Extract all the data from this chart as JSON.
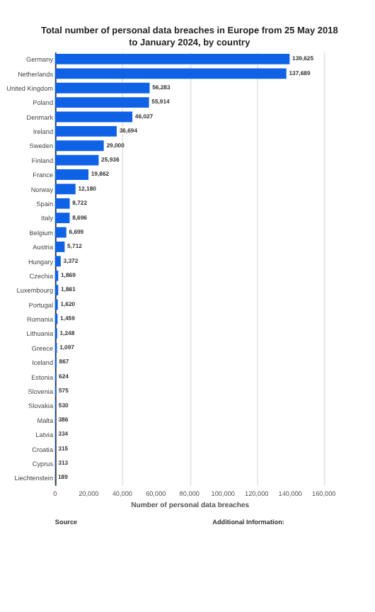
{
  "chart_data": {
    "type": "bar",
    "orientation": "horizontal",
    "title": "Total number of personal data breaches in Europe from 25 May 2018 to January 2024, by country",
    "xlabel": "Number of personal data breaches",
    "categories": [
      "Germany",
      "Netherlands",
      "United Kingdom",
      "Poland",
      "Denmark",
      "Ireland",
      "Sweden",
      "Finland",
      "France",
      "Norway",
      "Spain",
      "Italy",
      "Belgium",
      "Austria",
      "Hungary",
      "Czechia",
      "Luxembourg",
      "Portugal",
      "Romania",
      "Lithuania",
      "Greece",
      "Iceland",
      "Estonia",
      "Slovenia",
      "Slovakia",
      "Malta",
      "Latvia",
      "Croatia",
      "Cyprus",
      "Liechtenstein"
    ],
    "values": [
      139625,
      137689,
      56283,
      55914,
      46027,
      36694,
      29000,
      25936,
      19862,
      12180,
      8722,
      8696,
      6699,
      5712,
      3372,
      1869,
      1861,
      1620,
      1459,
      1248,
      1097,
      867,
      624,
      575,
      530,
      386,
      334,
      315,
      313,
      189
    ],
    "value_labels": [
      "139,625",
      "137,689",
      "56,283",
      "55,914",
      "46,027",
      "36,694",
      "29,000",
      "25,936",
      "19,862",
      "12,180",
      "8,722",
      "8,696",
      "6,699",
      "5,712",
      "3,372",
      "1,869",
      "1,861",
      "1,620",
      "1,459",
      "1,248",
      "1,097",
      "867",
      "624",
      "575",
      "530",
      "386",
      "334",
      "315",
      "313",
      "189"
    ],
    "color": "#0f62e6",
    "xlim": [
      0,
      160000
    ],
    "xticks": [
      0,
      {
        "value": 20000,
        "label": "20,000"
      },
      {
        "value": 40000,
        "label": "40,000"
      },
      {
        "value": 60000,
        "label": "60,000"
      },
      {
        "value": 80000,
        "label": "80,000"
      },
      {
        "value": 100000,
        "label": "100,000"
      },
      {
        "value": 120000,
        "label": "120,000"
      },
      {
        "value": 140000,
        "label": "140,000"
      },
      {
        "value": 160000,
        "label": "160,000"
      }
    ],
    "grid": "x",
    "data_labels": true,
    "annotations": [
      "Source",
      "Additional Information:"
    ]
  }
}
